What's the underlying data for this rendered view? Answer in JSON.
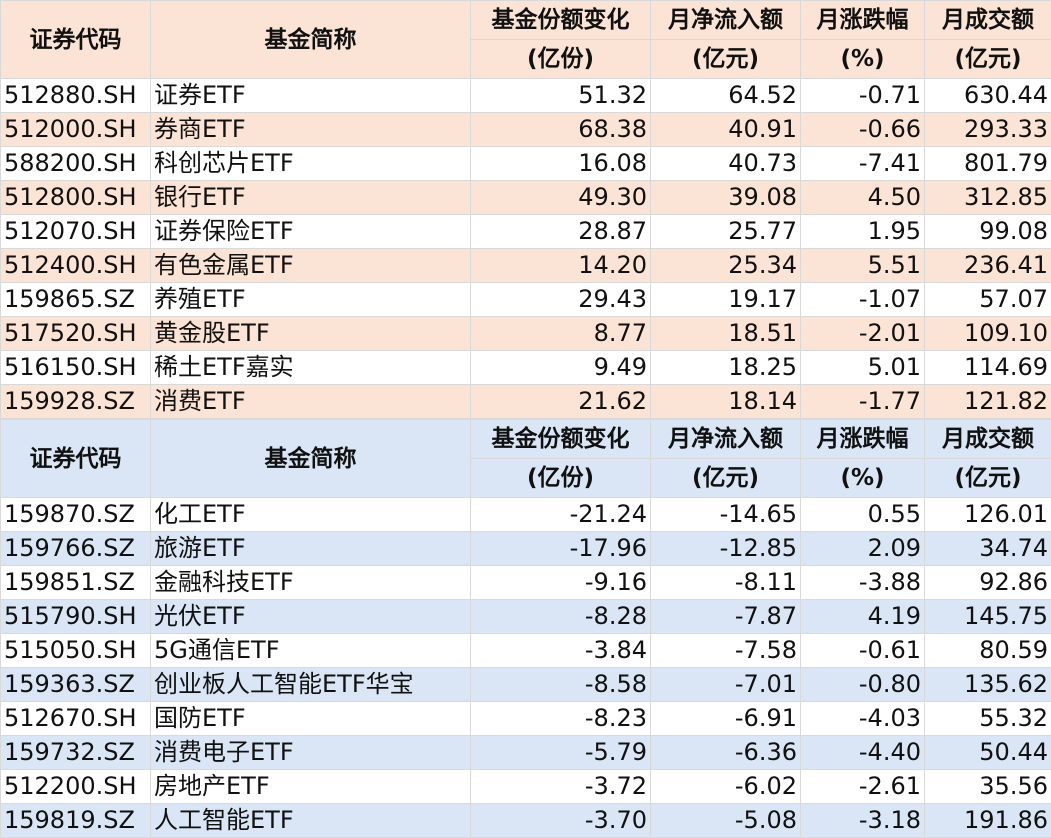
{
  "headers": {
    "code": "证券代码",
    "name": "基金简称",
    "share_change": [
      "基金份额变化",
      "(亿份)"
    ],
    "net_inflow": [
      "月净流入额",
      "(亿元)"
    ],
    "change_pct": [
      "月涨跌幅",
      "(%)"
    ],
    "turnover": [
      "月成交额",
      "(亿元)"
    ]
  },
  "inflow_table": [
    {
      "code": "512880.SH",
      "name": "证券ETF",
      "share_change": "51.32",
      "net_inflow": "64.52",
      "change_pct": "-0.71",
      "turnover": "630.44"
    },
    {
      "code": "512000.SH",
      "name": "券商ETF",
      "share_change": "68.38",
      "net_inflow": "40.91",
      "change_pct": "-0.66",
      "turnover": "293.33"
    },
    {
      "code": "588200.SH",
      "name": "科创芯片ETF",
      "share_change": "16.08",
      "net_inflow": "40.73",
      "change_pct": "-7.41",
      "turnover": "801.79"
    },
    {
      "code": "512800.SH",
      "name": "银行ETF",
      "share_change": "49.30",
      "net_inflow": "39.08",
      "change_pct": "4.50",
      "turnover": "312.85"
    },
    {
      "code": "512070.SH",
      "name": "证券保险ETF",
      "share_change": "28.87",
      "net_inflow": "25.77",
      "change_pct": "1.95",
      "turnover": "99.08"
    },
    {
      "code": "512400.SH",
      "name": "有色金属ETF",
      "share_change": "14.20",
      "net_inflow": "25.34",
      "change_pct": "5.51",
      "turnover": "236.41"
    },
    {
      "code": "159865.SZ",
      "name": "养殖ETF",
      "share_change": "29.43",
      "net_inflow": "19.17",
      "change_pct": "-1.07",
      "turnover": "57.07"
    },
    {
      "code": "517520.SH",
      "name": "黄金股ETF",
      "share_change": "8.77",
      "net_inflow": "18.51",
      "change_pct": "-2.01",
      "turnover": "109.10"
    },
    {
      "code": "516150.SH",
      "name": "稀土ETF嘉实",
      "share_change": "9.49",
      "net_inflow": "18.25",
      "change_pct": "5.01",
      "turnover": "114.69"
    },
    {
      "code": "159928.SZ",
      "name": "消费ETF",
      "share_change": "21.62",
      "net_inflow": "18.14",
      "change_pct": "-1.77",
      "turnover": "121.82"
    }
  ],
  "outflow_table": [
    {
      "code": "159870.SZ",
      "name": "化工ETF",
      "share_change": "-21.24",
      "net_inflow": "-14.65",
      "change_pct": "0.55",
      "turnover": "126.01"
    },
    {
      "code": "159766.SZ",
      "name": "旅游ETF",
      "share_change": "-17.96",
      "net_inflow": "-12.85",
      "change_pct": "2.09",
      "turnover": "34.74"
    },
    {
      "code": "159851.SZ",
      "name": "金融科技ETF",
      "share_change": "-9.16",
      "net_inflow": "-8.11",
      "change_pct": "-3.88",
      "turnover": "92.86"
    },
    {
      "code": "515790.SH",
      "name": "光伏ETF",
      "share_change": "-8.28",
      "net_inflow": "-7.87",
      "change_pct": "4.19",
      "turnover": "145.75"
    },
    {
      "code": "515050.SH",
      "name": "5G通信ETF",
      "share_change": "-3.84",
      "net_inflow": "-7.58",
      "change_pct": "-0.61",
      "turnover": "80.59"
    },
    {
      "code": "159363.SZ",
      "name": "创业板人工智能ETF华宝",
      "share_change": "-8.58",
      "net_inflow": "-7.01",
      "change_pct": "-0.80",
      "turnover": "135.62"
    },
    {
      "code": "512670.SH",
      "name": "国防ETF",
      "share_change": "-8.23",
      "net_inflow": "-6.91",
      "change_pct": "-4.03",
      "turnover": "55.32"
    },
    {
      "code": "159732.SZ",
      "name": "消费电子ETF",
      "share_change": "-5.79",
      "net_inflow": "-6.36",
      "change_pct": "-4.40",
      "turnover": "50.44"
    },
    {
      "code": "512200.SH",
      "name": "房地产ETF",
      "share_change": "-3.72",
      "net_inflow": "-6.02",
      "change_pct": "-2.61",
      "turnover": "35.56"
    },
    {
      "code": "159819.SZ",
      "name": "人工智能ETF",
      "share_change": "-3.70",
      "net_inflow": "-5.08",
      "change_pct": "-3.18",
      "turnover": "191.86"
    }
  ],
  "colors": {
    "inflow_band": "#fbe4d5",
    "outflow_band": "#dae6f5",
    "grid": "#d9d9d9"
  }
}
